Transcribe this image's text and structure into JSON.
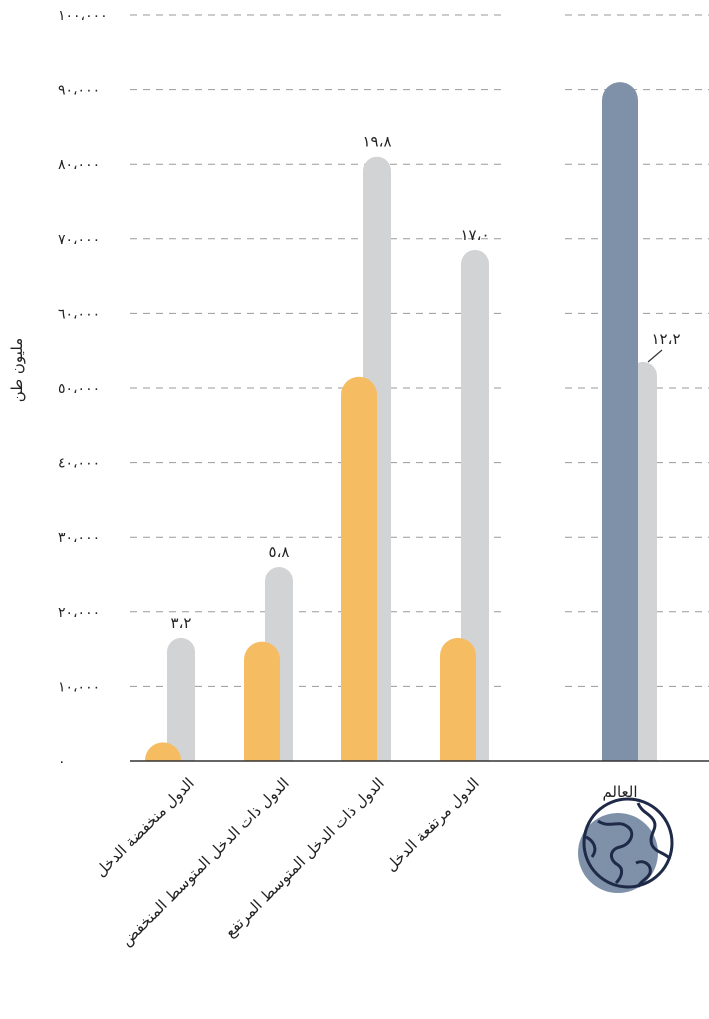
{
  "chart_data": {
    "type": "bar",
    "ylabel": "مليون طن",
    "ylim": [
      0,
      100000
    ],
    "yticks": [
      "٠",
      "١٠،٠٠٠",
      "٢٠،٠٠٠",
      "٣٠،٠٠٠",
      "٤٠،٠٠٠",
      "٥٠،٠٠٠",
      "٦٠،٠٠٠",
      "٧٠،٠٠٠",
      "٨٠،٠٠٠",
      "٩٠،٠٠٠",
      "١٠٠،٠٠٠"
    ],
    "grid": true,
    "categories": [
      "الدول منخفضة الدخل",
      "الدول ذات الدخل المتوسط المنخفض",
      "الدول ذات الدخل المتوسط المرتفع",
      "الدول مرتفعة الدخل",
      "العالم"
    ],
    "series": [
      {
        "values": [
          2500,
          16000,
          51500,
          16500,
          91000
        ]
      },
      {
        "values": [
          16500,
          26000,
          81000,
          68500,
          53500
        ]
      }
    ],
    "bar_labels": [
      "٣،٢",
      "٥،٨",
      "١٩،٨",
      "١٧،٠",
      "١٢،٢"
    ],
    "colors": {
      "primary": "#F5BC62",
      "world": "#7F91A9",
      "secondary": "#D2D3D5",
      "grid": "#9A9A9A",
      "axis": "#333333"
    },
    "icon": "globe-icon"
  }
}
